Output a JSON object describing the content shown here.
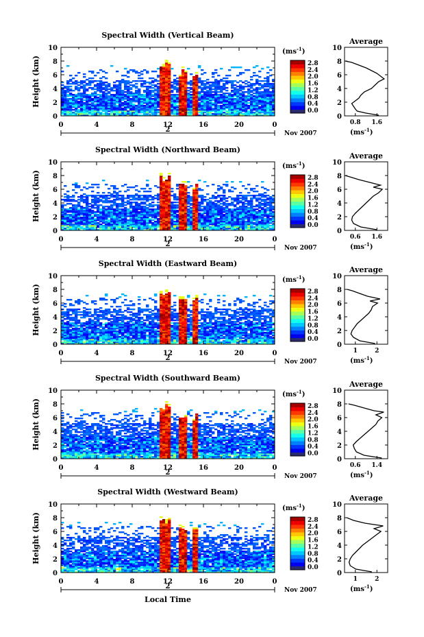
{
  "figure": {
    "xlabel": "Local Time",
    "date_label": "2",
    "date_suffix": "Nov 2007",
    "cbar_unit": "(ms",
    "cbar_unit_exp": "-1",
    "cbar_unit_close": ")",
    "avg_title": "Average",
    "avg_unit": "(ms",
    "avg_unit_exp": "-1",
    "avg_unit_close": ")"
  },
  "chart_data": [
    {
      "type": "heatmap",
      "title": "Spectral Width (Vertical Beam)",
      "xlabel": "Local Time",
      "ylabel": "Height (km)",
      "xlim": [
        0,
        24
      ],
      "ylim": [
        0,
        10
      ],
      "x_ticks": [
        "0",
        "4",
        "8",
        "12",
        "16",
        "20",
        "0"
      ],
      "y_ticks": [
        "0",
        "2",
        "4",
        "6",
        "8",
        "10"
      ],
      "colorbar": {
        "unit": "ms-1",
        "range": [
          0,
          2.8
        ],
        "ticks": [
          "2.8",
          "2.4",
          "2.0",
          "1.6",
          "1.2",
          "0.8",
          "0.4",
          "0.0"
        ]
      },
      "clouds_hours": [
        [
          11.2,
          12.4
        ],
        [
          13.2,
          14.2
        ],
        [
          14.8,
          15.3
        ]
      ],
      "average": {
        "title": "Average",
        "xlim": [
          0.6,
          1.8
        ],
        "x_ticks": [
          "0.8",
          "1.6"
        ],
        "y_ticks": [
          "0",
          "2",
          "4",
          "6",
          "8",
          "10"
        ],
        "height_km": [
          0.1,
          0.4,
          0.7,
          1.0,
          1.4,
          1.8,
          2.2,
          2.6,
          3.0,
          3.5,
          4.0,
          4.5,
          5.0,
          5.4,
          5.8,
          6.2,
          6.6,
          7.0,
          7.4,
          7.8,
          8.0
        ],
        "width": [
          1.55,
          1.2,
          0.95,
          0.9,
          0.85,
          0.8,
          0.9,
          1.0,
          1.05,
          1.15,
          1.35,
          1.45,
          1.55,
          1.7,
          1.6,
          1.5,
          1.35,
          1.2,
          1.0,
          0.8,
          0.62
        ]
      }
    },
    {
      "type": "heatmap",
      "title": "Spectral Width (Northward Beam)",
      "xlabel": "Local Time",
      "ylabel": "Height (km)",
      "xlim": [
        0,
        24
      ],
      "ylim": [
        0,
        10
      ],
      "x_ticks": [
        "0",
        "4",
        "8",
        "12",
        "16",
        "20",
        "0"
      ],
      "y_ticks": [
        "0",
        "2",
        "4",
        "6",
        "8",
        "10"
      ],
      "colorbar": {
        "unit": "ms-1",
        "range": [
          0,
          2.8
        ],
        "ticks": [
          "2.8",
          "2.4",
          "2.0",
          "1.6",
          "1.2",
          "0.8",
          "0.4",
          "0.0"
        ]
      },
      "clouds_hours": [
        [
          11.2,
          12.4
        ],
        [
          13.2,
          14.2
        ],
        [
          14.8,
          15.3
        ]
      ],
      "average": {
        "title": "Average",
        "xlim": [
          0.6,
          1.8
        ],
        "x_ticks": [
          "0.6",
          "1.6"
        ],
        "y_ticks": [
          "0",
          "2",
          "4",
          "6",
          "8",
          "10"
        ],
        "height_km": [
          0.1,
          0.5,
          1.0,
          1.5,
          2.0,
          2.5,
          3.0,
          3.5,
          4.0,
          4.5,
          5.0,
          5.5,
          6.0,
          6.3,
          6.6,
          7.0,
          7.4,
          7.8,
          8.0
        ],
        "width": [
          1.5,
          1.05,
          0.85,
          0.8,
          0.82,
          0.9,
          1.0,
          1.1,
          1.2,
          1.3,
          1.4,
          1.55,
          1.65,
          1.4,
          1.6,
          1.3,
          1.0,
          0.75,
          0.62
        ]
      }
    },
    {
      "type": "heatmap",
      "title": "Spectral Width (Eastward Beam)",
      "xlabel": "Local Time",
      "ylabel": "Height (km)",
      "xlim": [
        0,
        24
      ],
      "ylim": [
        0,
        10
      ],
      "x_ticks": [
        "0",
        "4",
        "8",
        "12",
        "16",
        "20",
        "0"
      ],
      "y_ticks": [
        "0",
        "2",
        "4",
        "6",
        "8",
        "10"
      ],
      "colorbar": {
        "unit": "ms-1",
        "range": [
          0,
          2.8
        ],
        "ticks": [
          "2.8",
          "2.4",
          "2.0",
          "1.6",
          "1.2",
          "0.8",
          "0.4",
          "0.0"
        ]
      },
      "clouds_hours": [
        [
          11.2,
          12.4
        ],
        [
          13.2,
          14.2
        ],
        [
          14.8,
          15.3
        ]
      ],
      "average": {
        "title": "Average",
        "xlim": [
          0.5,
          2.2
        ],
        "x_ticks": [
          "1",
          "2"
        ],
        "y_ticks": [
          "0",
          "2",
          "4",
          "6",
          "8",
          "10"
        ],
        "height_km": [
          0.1,
          0.5,
          1.0,
          1.5,
          2.0,
          2.5,
          3.0,
          3.5,
          4.0,
          4.5,
          5.0,
          5.5,
          6.0,
          6.3,
          6.6,
          7.0,
          7.4,
          7.8,
          8.0
        ],
        "width": [
          1.7,
          1.1,
          0.85,
          0.75,
          0.8,
          0.9,
          1.0,
          1.15,
          1.3,
          1.45,
          1.55,
          1.6,
          1.8,
          1.5,
          1.9,
          1.4,
          1.1,
          0.8,
          0.6
        ]
      }
    },
    {
      "type": "heatmap",
      "title": "Spectral Width (Southward Beam)",
      "xlabel": "Local Time",
      "ylabel": "Height (km)",
      "xlim": [
        0,
        24
      ],
      "ylim": [
        0,
        10
      ],
      "x_ticks": [
        "0",
        "4",
        "8",
        "12",
        "16",
        "20",
        "0"
      ],
      "y_ticks": [
        "0",
        "2",
        "4",
        "6",
        "8",
        "10"
      ],
      "colorbar": {
        "unit": "ms-1",
        "range": [
          0,
          2.8
        ],
        "ticks": [
          "2.8",
          "2.4",
          "2.0",
          "1.6",
          "1.2",
          "0.8",
          "0.4",
          "0.0"
        ]
      },
      "clouds_hours": [
        [
          11.2,
          12.4
        ],
        [
          13.2,
          14.2
        ],
        [
          14.8,
          15.3
        ]
      ],
      "average": {
        "title": "Average",
        "xlim": [
          0.5,
          1.6
        ],
        "x_ticks": [
          "0.6",
          "1.4"
        ],
        "y_ticks": [
          "0",
          "2",
          "4",
          "6",
          "8",
          "10"
        ],
        "height_km": [
          0.1,
          0.5,
          1.0,
          1.5,
          2.0,
          2.5,
          3.0,
          3.5,
          4.0,
          4.5,
          5.0,
          5.5,
          6.0,
          6.4,
          6.8,
          7.0,
          7.4,
          7.8,
          8.0
        ],
        "width": [
          1.45,
          1.0,
          0.8,
          0.75,
          0.72,
          0.8,
          0.9,
          1.0,
          1.1,
          1.2,
          1.3,
          1.35,
          1.45,
          1.3,
          1.5,
          1.25,
          1.0,
          0.75,
          0.6
        ]
      }
    },
    {
      "type": "heatmap",
      "title": "Spectral Width (Westward Beam)",
      "xlabel": "Local Time",
      "ylabel": "Height (km)",
      "xlim": [
        0,
        24
      ],
      "ylim": [
        0,
        10
      ],
      "x_ticks": [
        "0",
        "4",
        "8",
        "12",
        "16",
        "20",
        "0"
      ],
      "y_ticks": [
        "0",
        "2",
        "4",
        "6",
        "8",
        "10"
      ],
      "colorbar": {
        "unit": "ms-1",
        "range": [
          0,
          2.8
        ],
        "ticks": [
          "2.8",
          "2.4",
          "2.0",
          "1.6",
          "1.2",
          "0.8",
          "0.4",
          "0.0"
        ]
      },
      "clouds_hours": [
        [
          11.2,
          12.4
        ],
        [
          13.2,
          14.2
        ],
        [
          14.8,
          15.3
        ]
      ],
      "average": {
        "title": "Average",
        "xlim": [
          0.7,
          2.6
        ],
        "x_ticks": [
          "1",
          "2"
        ],
        "y_ticks": [
          "0",
          "2",
          "4",
          "6",
          "8",
          "10"
        ],
        "height_km": [
          0.1,
          0.5,
          1.0,
          1.5,
          2.0,
          2.5,
          3.0,
          3.5,
          4.0,
          4.5,
          5.0,
          5.5,
          6.0,
          6.4,
          6.8,
          7.2,
          7.6,
          8.0
        ],
        "width": [
          1.9,
          1.2,
          0.95,
          0.9,
          0.95,
          1.05,
          1.2,
          1.35,
          1.5,
          1.7,
          1.9,
          2.1,
          2.3,
          2.0,
          2.4,
          1.6,
          1.1,
          0.8
        ]
      }
    }
  ]
}
